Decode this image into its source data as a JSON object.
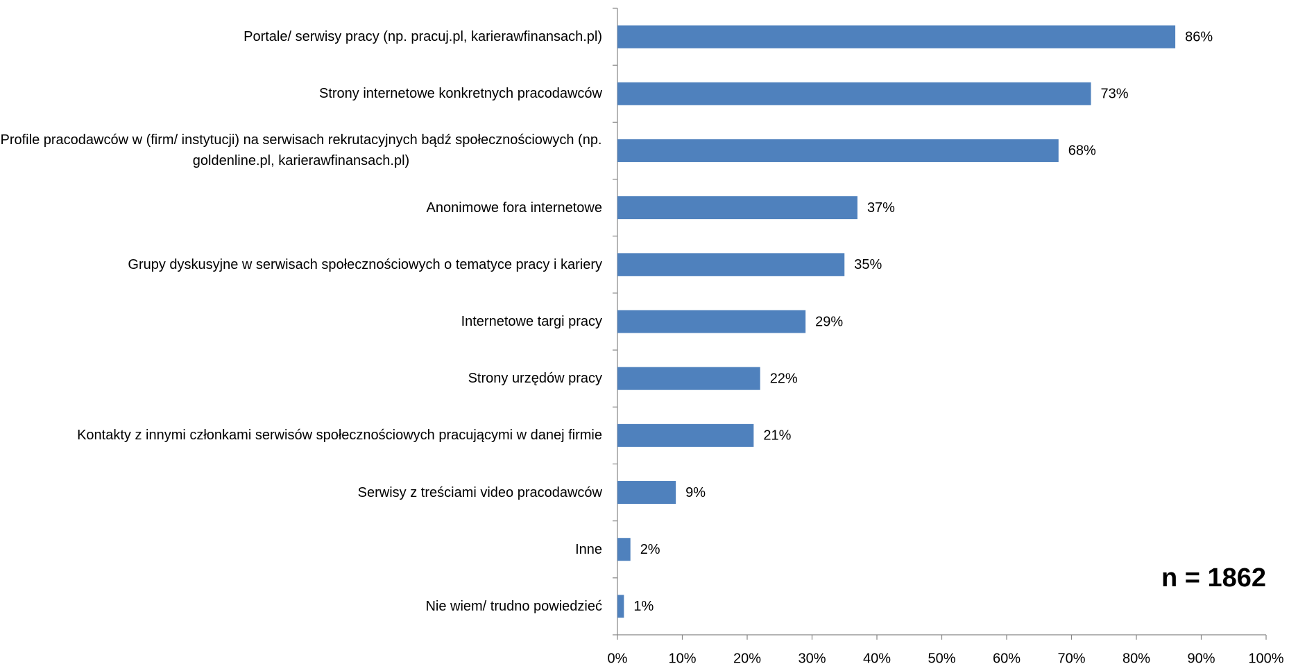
{
  "chart_data": {
    "type": "barh",
    "categories": [
      "Portale/ serwisy pracy (np. pracuj.pl, karierawfinansach.pl)",
      "Strony internetowe konkretnych pracodawców",
      "Profile pracodawców w (firm/ instytucji) na serwisach rekrutacyjnych bądź społecznościowych (np. goldenline.pl, karierawfinansach.pl)",
      "Anonimowe fora internetowe",
      "Grupy dyskusyjne w serwisach społecznościowych o tematyce pracy i kariery",
      "Internetowe targi pracy",
      "Strony urzędów pracy",
      "Kontakty z innymi członkami serwisów społecznościowych pracującymi w danej firmie",
      "Serwisy z treściami video pracodawców",
      "Inne",
      "Nie wiem/  trudno powiedzieć"
    ],
    "values": [
      86,
      73,
      68,
      37,
      35,
      29,
      22,
      21,
      9,
      2,
      1
    ],
    "value_labels": [
      "86%",
      "73%",
      "68%",
      "37%",
      "35%",
      "29%",
      "22%",
      "21%",
      "9%",
      "2%",
      "1%"
    ],
    "color": "#4f81bd",
    "xlim": [
      0,
      100
    ],
    "xticks": [
      {
        "value": 0,
        "label": "0%"
      },
      {
        "value": 10,
        "label": "10%"
      },
      {
        "value": 20,
        "label": "20%"
      },
      {
        "value": 30,
        "label": "30%"
      },
      {
        "value": 40,
        "label": "40%"
      },
      {
        "value": 50,
        "label": "50%"
      },
      {
        "value": 60,
        "label": "60%"
      },
      {
        "value": 70,
        "label": "70%"
      },
      {
        "value": 80,
        "label": "80%"
      },
      {
        "value": 90,
        "label": "90%"
      },
      {
        "value": 100,
        "label": "100%"
      }
    ],
    "grid": false,
    "annotation": "n = 1862"
  }
}
